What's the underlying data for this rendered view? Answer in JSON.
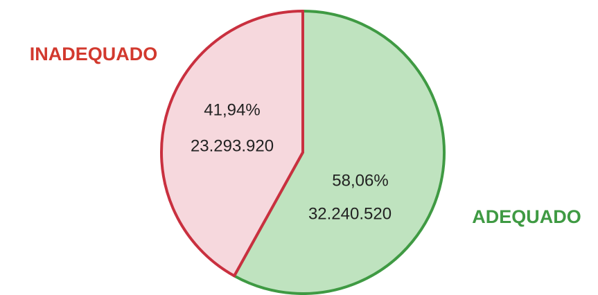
{
  "chart_data": {
    "type": "pie",
    "categories": [
      "ADEQUADO",
      "INADEQUADO"
    ],
    "values": [
      58.06,
      41.94
    ],
    "value_labels": [
      "58,06%",
      "41,94%"
    ],
    "counts": [
      32240520,
      23293920
    ],
    "count_labels": [
      "32.240.520",
      "23.293.920"
    ],
    "colors": [
      "#bfe3bf",
      "#f6d8dd"
    ],
    "edge_colors": [
      "#3f9a43",
      "#c9303f"
    ],
    "label_colors": [
      "#3f9a43",
      "#d2392e"
    ]
  }
}
